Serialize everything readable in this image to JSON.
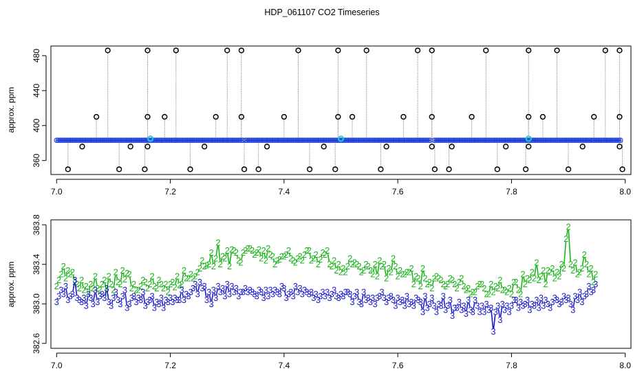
{
  "title": "HDP_061107  CO2 Timeseries",
  "colors": {
    "background": "#ffffff",
    "axis": "#000000",
    "spike_line": "#999999",
    "spike_marker": "#000000",
    "main_series": "#1f3fd8",
    "main_highlight": "#22cfd8",
    "series_2": "#18b418",
    "series_3": "#1a1acc"
  },
  "chart_data": [
    {
      "type": "scatter",
      "title": "HDP_061107  CO2 Timeseries",
      "ylabel": "approx. ppm",
      "xlabel": "",
      "xlim": [
        6.99,
        8.01
      ],
      "ylim": [
        344,
        491
      ],
      "xticks": [
        "7.0",
        "7.2",
        "7.4",
        "7.6",
        "7.8",
        "8.0"
      ],
      "yticks": [
        "360",
        "400",
        "440",
        "480"
      ],
      "grid": false,
      "baseline": [
        {
          "x": [
            7.0,
            7.328
          ],
          "y": 383.2
        },
        {
          "x": [
            7.332,
            7.658
          ],
          "y": 383.2
        },
        {
          "x": [
            7.664,
            7.992
          ],
          "y": 383.2
        }
      ],
      "baseline_point_step": 0.0028,
      "highlighted_points": [
        {
          "x": 7.165,
          "y": 385
        },
        {
          "x": 7.5,
          "y": 385
        },
        {
          "x": 7.83,
          "y": 385
        }
      ],
      "spikes_up_to_max": [
        7.09,
        7.16,
        7.21,
        7.3,
        7.325,
        7.425,
        7.495,
        7.545,
        7.635,
        7.66,
        7.755,
        7.83,
        7.88,
        7.965,
        7.99
      ],
      "spikes_to_410": [
        7.07,
        7.16,
        7.19,
        7.28,
        7.325,
        7.4,
        7.495,
        7.52,
        7.61,
        7.66,
        7.73,
        7.83,
        7.855,
        7.945,
        7.99
      ],
      "spikes_to_376": [
        7.045,
        7.13,
        7.16,
        7.26,
        7.37,
        7.47,
        7.58,
        7.66,
        7.695,
        7.79,
        7.83,
        7.925,
        7.99
      ],
      "spikes_to_350": [
        7.02,
        7.11,
        7.155,
        7.235,
        7.33,
        7.355,
        7.445,
        7.49,
        7.57,
        7.665,
        7.69,
        7.775,
        7.825,
        7.9,
        7.995
      ],
      "max_value": 486,
      "value_410": 410,
      "value_376": 376,
      "value_350": 350
    },
    {
      "type": "line",
      "title": "",
      "ylabel": "approx. ppm",
      "xlabel": "",
      "xlim": [
        6.99,
        8.01
      ],
      "ylim": [
        382.55,
        383.85
      ],
      "xticks": [
        "7.0",
        "7.2",
        "7.4",
        "7.6",
        "7.8",
        "8.0"
      ],
      "yticks": [
        "382.6",
        "383.0",
        "383.4",
        "383.8"
      ],
      "grid": false,
      "x_start": 7.0,
      "x_step": 0.004,
      "series": [
        {
          "marker": "2",
          "values": [
            383.18,
            383.24,
            383.3,
            383.38,
            383.26,
            383.34,
            383.3,
            383.32,
            383.22,
            383.2,
            383.16,
            383.24,
            383.14,
            383.18,
            383.12,
            383.2,
            383.16,
            383.28,
            383.16,
            383.14,
            383.2,
            383.24,
            383.12,
            383.28,
            383.2,
            383.14,
            383.32,
            383.22,
            383.2,
            383.34,
            383.25,
            383.31,
            383.3,
            383.16,
            383.2,
            383.14,
            383.14,
            383.18,
            383.24,
            383.22,
            383.16,
            383.2,
            383.28,
            383.18,
            383.16,
            383.24,
            383.2,
            383.16,
            383.2,
            383.12,
            383.2,
            383.22,
            383.17,
            383.28,
            383.19,
            383.2,
            383.34,
            383.26,
            383.26,
            383.3,
            383.26,
            383.28,
            383.32,
            383.36,
            383.44,
            383.38,
            383.39,
            383.4,
            383.52,
            383.38,
            383.46,
            383.62,
            383.4,
            383.48,
            383.46,
            383.54,
            383.38,
            383.55,
            383.54,
            383.52,
            383.44,
            383.42,
            383.52,
            383.54,
            383.56,
            383.56,
            383.54,
            383.5,
            383.52,
            383.55,
            383.46,
            383.54,
            383.44,
            383.56,
            383.5,
            383.48,
            383.4,
            383.44,
            383.45,
            383.48,
            383.48,
            383.5,
            383.54,
            383.46,
            383.44,
            383.42,
            383.46,
            383.48,
            383.44,
            383.5,
            383.54,
            383.54,
            383.44,
            383.46,
            383.5,
            383.4,
            383.45,
            383.52,
            383.5,
            383.54,
            383.4,
            383.38,
            383.44,
            383.34,
            383.4,
            383.32,
            383.36,
            383.32,
            383.38,
            383.46,
            383.4,
            383.42,
            383.4,
            383.38,
            383.32,
            383.34,
            383.4,
            383.38,
            383.34,
            383.3,
            383.4,
            383.28,
            383.44,
            383.38,
            383.4,
            383.26,
            383.36,
            383.32,
            383.46,
            383.38,
            383.28,
            383.34,
            383.3,
            383.3,
            383.32,
            383.32,
            383.36,
            383.2,
            383.28,
            383.26,
            383.18,
            383.36,
            383.26,
            383.2,
            383.22,
            383.16,
            383.26,
            383.28,
            383.26,
            383.24,
            383.2,
            383.18,
            383.2,
            383.26,
            383.24,
            383.2,
            383.16,
            383.22,
            383.26,
            383.18,
            383.14,
            383.16,
            383.1,
            383.12,
            383.12,
            383.18,
            383.2,
            383.2,
            383.16,
            383.1,
            383.1,
            383.2,
            383.12,
            383.18,
            383.16,
            383.24,
            383.14,
            383.14,
            383.12,
            383.16,
            383.1,
            383.22,
            383.22,
            383.14,
            383.1,
            383.3,
            383.2,
            383.26,
            383.24,
            383.32,
            383.26,
            383.42,
            383.24,
            383.28,
            383.34,
            383.2,
            383.34,
            383.32,
            383.36,
            383.26,
            383.32,
            383.28,
            383.4,
            383.36,
            383.66,
            383.78,
            383.4,
            383.34,
            383.42,
            383.3,
            383.32,
            383.36,
            383.5,
            383.4,
            383.3,
            383.36,
            383.22,
            383.3
          ]
        },
        {
          "marker": "3",
          "values": [
            383.02,
            383.08,
            383.14,
            383.1,
            383.18,
            383.04,
            383.08,
            383.1,
            383.24,
            383.06,
            383.04,
            383.02,
            383.06,
            382.98,
            383.1,
            383.06,
            383.0,
            383.14,
            383.02,
            383.08,
            383.1,
            383.06,
            383.16,
            383.02,
            382.98,
            383.06,
            383.12,
            383.04,
            383.0,
            383.08,
            383.14,
            382.96,
            383.0,
            383.06,
            383.08,
            383.02,
            383.06,
            383.04,
            383.12,
            382.98,
            383.02,
            383.04,
            383.08,
            382.96,
            383.02,
            383.0,
            383.06,
            382.96,
            383.04,
            383.02,
            383.06,
            383.02,
            383.06,
            383.04,
            383.04,
            383.14,
            383.04,
            383.1,
            383.08,
            383.12,
            383.16,
            383.2,
            383.1,
            383.22,
            383.16,
            383.18,
            383.04,
            383.12,
            383.0,
            383.14,
            383.06,
            383.18,
            383.12,
            383.16,
            383.08,
            383.2,
            383.1,
            383.18,
            383.12,
            383.16,
            383.08,
            383.12,
            383.12,
            383.16,
            383.12,
            383.14,
            383.12,
            383.1,
            383.08,
            383.14,
            383.12,
            383.06,
            383.14,
            383.08,
            383.14,
            383.1,
            383.14,
            383.12,
            383.1,
            383.18,
            383.16,
            383.06,
            383.1,
            383.12,
            383.08,
            383.18,
            383.12,
            383.16,
            383.1,
            383.14,
            383.12,
            383.1,
            383.12,
            383.06,
            383.1,
            383.04,
            383.08,
            383.12,
            383.08,
            383.12,
            383.06,
            383.1,
            383.14,
            383.08,
            383.06,
            383.1,
            383.08,
            383.12,
            383.12,
            383.1,
            383.02,
            383.08,
            383.12,
            383.02,
            383.0,
            383.12,
            383.04,
            383.06,
            383.02,
            383.06,
            383.0,
            383.06,
            383.08,
            383.12,
            383.06,
            383.02,
            383.06,
            383.08,
            383.04,
            382.98,
            383.06,
            383.02,
            383.04,
            382.98,
            383.08,
            383.0,
            383.02,
            382.98,
            383.06,
            383.04,
            383.02,
            382.92,
            383.08,
            382.96,
            383.0,
            383.06,
            382.98,
            382.92,
            383.0,
            382.98,
            383.08,
            382.94,
            382.98,
            383.04,
            382.88,
            382.96,
            382.96,
            383.02,
            382.94,
            382.98,
            382.9,
            383.04,
            382.94,
            382.92,
            383.04,
            382.98,
            382.92,
            382.98,
            382.92,
            383.0,
            382.94,
            382.96,
            382.72,
            382.92,
            382.98,
            382.84,
            383.0,
            382.94,
            382.98,
            382.92,
            382.98,
            383.04,
            383.04,
            382.96,
            383.02,
            382.98,
            383.0,
            383.04,
            382.94,
            383.0,
            382.98,
            383.04,
            382.96,
            383.06,
            382.98,
            383.04,
            383.0,
            382.96,
            383.02,
            383.06,
            383.04,
            383.0,
            383.02,
            383.08,
            383.04,
            383.06,
            383.0,
            382.94,
            383.08,
            383.04,
            383.12,
            383.02,
            383.08,
            383.1,
            383.18,
            383.12,
            383.14,
            383.2
          ]
        }
      ]
    }
  ]
}
